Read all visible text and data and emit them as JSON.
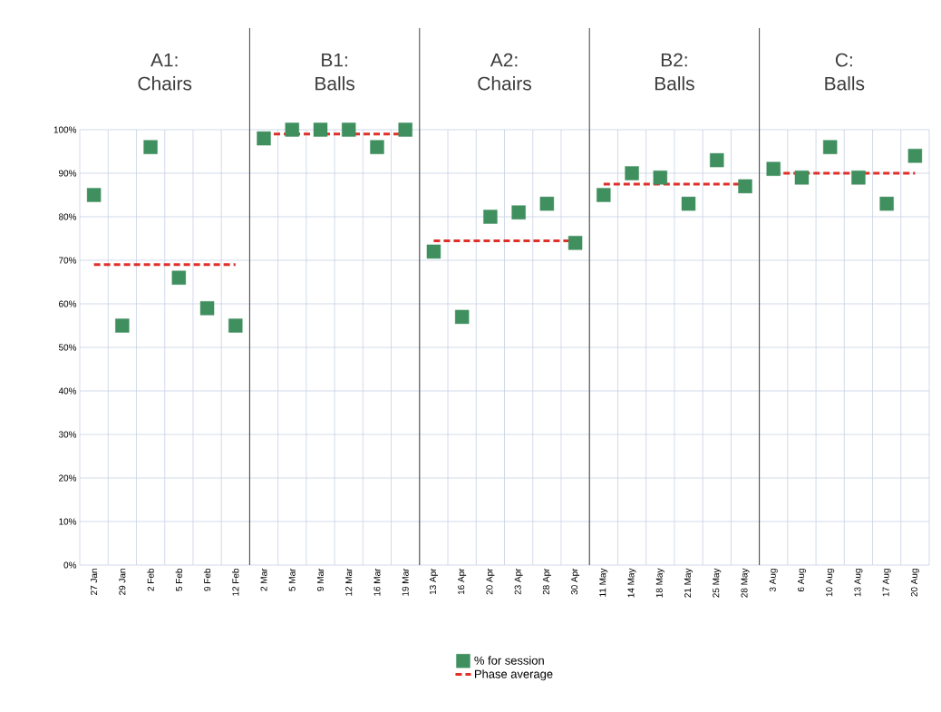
{
  "chart_data": {
    "type": "scatter",
    "categories": [
      "27 Jan",
      "29 Jan",
      "2 Feb",
      "5 Feb",
      "9 Feb",
      "12 Feb",
      "2 Mar",
      "5 Mar",
      "9 Mar",
      "12 Mar",
      "16 Mar",
      "19 Mar",
      "13 Apr",
      "16 Apr",
      "20 Apr",
      "23 Apr",
      "28 Apr",
      "30 Apr",
      "11 May",
      "14 May",
      "18 May",
      "21 May",
      "25 May",
      "28 May",
      "3 Aug",
      "6 Aug",
      "10 Aug",
      "13 Aug",
      "17 Aug",
      "20 Aug"
    ],
    "series": [
      {
        "name": "% for session",
        "marker": "square",
        "color": "#3f8f5f",
        "values": [
          85,
          55,
          96,
          66,
          59,
          55,
          98,
          100,
          100,
          100,
          96,
          100,
          72,
          57,
          80,
          81,
          83,
          74,
          85,
          90,
          89,
          83,
          93,
          87,
          91,
          89,
          96,
          89,
          83,
          94
        ]
      },
      {
        "name": "Phase average",
        "type": "line",
        "line_style": "dashed",
        "marker": "none",
        "color": "#e0302a",
        "values": [
          69,
          69,
          69,
          69,
          69,
          69,
          null,
          null,
          null,
          null,
          null,
          null,
          null,
          null,
          null,
          null,
          null,
          null,
          null,
          null,
          null,
          null,
          null,
          null,
          null,
          null,
          null,
          null,
          null,
          null
        ]
      },
      {
        "type": "line",
        "line_style": "dashed",
        "marker": "none",
        "color": "#e0302a",
        "values": [
          null,
          null,
          null,
          null,
          null,
          null,
          99,
          99,
          99,
          99,
          99,
          99,
          null,
          null,
          null,
          null,
          null,
          null,
          null,
          null,
          null,
          null,
          null,
          null,
          null,
          null,
          null,
          null,
          null,
          null
        ]
      },
      {
        "type": "line",
        "line_style": "dashed",
        "marker": "none",
        "color": "#e0302a",
        "values": [
          null,
          null,
          null,
          null,
          null,
          null,
          null,
          null,
          null,
          null,
          null,
          null,
          74.5,
          74.5,
          74.5,
          74.5,
          74.5,
          74.5,
          null,
          null,
          null,
          null,
          null,
          null,
          null,
          null,
          null,
          null,
          null,
          null
        ]
      },
      {
        "type": "line",
        "line_style": "dashed",
        "marker": "none",
        "color": "#e0302a",
        "values": [
          null,
          null,
          null,
          null,
          null,
          null,
          null,
          null,
          null,
          null,
          null,
          null,
          null,
          null,
          null,
          null,
          null,
          null,
          87.5,
          87.5,
          87.5,
          87.5,
          87.5,
          87.5,
          null,
          null,
          null,
          null,
          null,
          null
        ]
      },
      {
        "type": "line",
        "line_style": "dashed",
        "marker": "none",
        "color": "#e0302a",
        "values": [
          null,
          null,
          null,
          null,
          null,
          null,
          null,
          null,
          null,
          null,
          null,
          null,
          null,
          null,
          null,
          null,
          null,
          null,
          null,
          null,
          null,
          null,
          null,
          null,
          90,
          90,
          90,
          90,
          90,
          90
        ]
      }
    ],
    "ylim": [
      0,
      100
    ],
    "yticks": [
      {
        "value": 0,
        "label": "0%"
      },
      {
        "value": 10,
        "label": "10%"
      },
      {
        "value": 20,
        "label": "20%"
      },
      {
        "value": 30,
        "label": "30%"
      },
      {
        "value": 40,
        "label": "40%"
      },
      {
        "value": 50,
        "label": "50%"
      },
      {
        "value": 60,
        "label": "60%"
      },
      {
        "value": 70,
        "label": "70%"
      },
      {
        "value": 80,
        "label": "80%"
      },
      {
        "value": 90,
        "label": "90%"
      },
      {
        "value": 100,
        "label": "100%"
      }
    ],
    "annotations": [
      "A1: Chairs",
      "B1: Balls",
      "A2: Chairs",
      "B2: Balls",
      "C: Balls"
    ],
    "grid": true,
    "legend": "bottom"
  }
}
